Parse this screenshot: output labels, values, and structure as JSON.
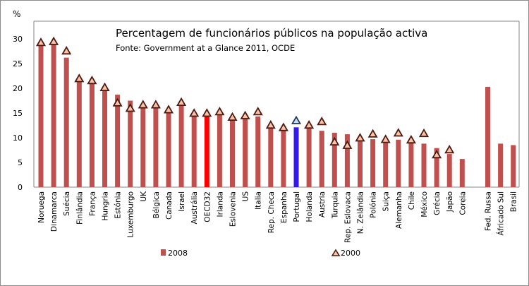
{
  "chart_data": {
    "type": "bar",
    "title": "Percentagem  de funcionários públicos na população activa",
    "subtitle": "Fonte: Government at a Glance 2011,  OCDE",
    "ylabel": "%",
    "ylim": [
      0,
      30
    ],
    "yticks": [
      0,
      5,
      10,
      15,
      20,
      25,
      30
    ],
    "grid": false,
    "legend_position": "bottom",
    "categories": [
      "Noruega",
      "Dinamarca",
      "Suécia",
      "Finlândia",
      "França",
      "Hungria",
      "Estónia",
      "Luxemburgo",
      "UK",
      "Bélgica",
      "Canada",
      "Israel",
      "Austrália",
      "OECD32",
      "Irlanda",
      "Eslovenia",
      "US",
      "Italia",
      "Rep. Checa",
      "Espanha",
      "Portugal",
      "Holanda",
      "Austria",
      "Turquia",
      "Rep. Eslovaca",
      "N. Zelândia",
      "Polónia",
      "Suiça",
      "Alemanha",
      "Chile",
      "México",
      "Grécia",
      "Japão",
      "Coreia",
      "Fed. Russa",
      "Áfricado Sul",
      "Brasil"
    ],
    "gap_before_index": 34,
    "series": [
      {
        "name": "2008",
        "type": "bar",
        "color": "#c0504d",
        "values": [
          29.0,
          29.0,
          26.2,
          22.0,
          21.0,
          20.0,
          18.7,
          17.5,
          16.5,
          16.5,
          15.5,
          16.5,
          14.5,
          14.5,
          15.0,
          13.5,
          14.0,
          14.3,
          12.2,
          12.2,
          12.1,
          12.0,
          11.4,
          11.0,
          10.7,
          9.8,
          9.7,
          9.5,
          9.6,
          9.2,
          8.8,
          7.9,
          6.7,
          5.7,
          20.3,
          8.8,
          8.5
        ]
      },
      {
        "name": "2000",
        "type": "marker-triangle",
        "color": "#f9c3a9",
        "edge_color": "#4d1a12",
        "values": [
          29.3,
          29.5,
          27.6,
          22.0,
          21.6,
          20.2,
          17.1,
          16.0,
          16.7,
          16.7,
          15.7,
          17.2,
          15.0,
          15.0,
          15.3,
          14.2,
          14.5,
          15.3,
          12.6,
          12.1,
          13.5,
          12.6,
          13.3,
          9.2,
          8.5,
          10.0,
          10.8,
          9.7,
          11.0,
          9.6,
          10.9,
          6.6,
          7.6,
          null,
          null,
          null,
          null
        ]
      }
    ],
    "highlights": {
      "OECD32": {
        "bar_color": "#ff0000"
      },
      "Portugal": {
        "bar_color": "#3319ee",
        "marker_color": "#c6e0f0",
        "marker_edge": "#1f3a5a"
      }
    }
  }
}
